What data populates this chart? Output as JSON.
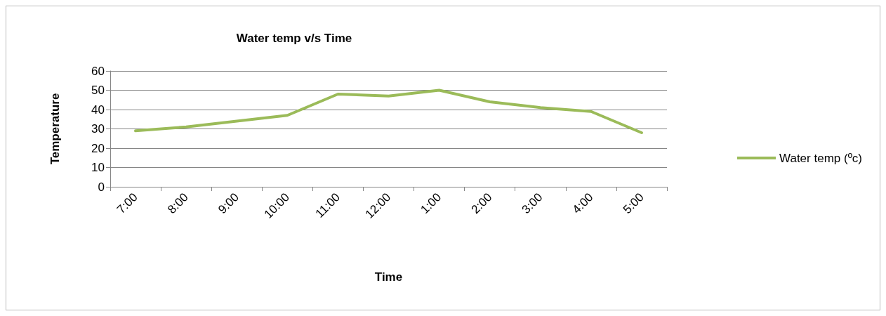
{
  "chart_data": {
    "type": "line",
    "title": "Water temp v/s Time",
    "xlabel": "Time",
    "ylabel": "Temperature",
    "categories": [
      "7:00",
      "8:00",
      "9:00",
      "10:00",
      "11:00",
      "12:00",
      "1:00",
      "2:00",
      "3:00",
      "4:00",
      "5:00"
    ],
    "series": [
      {
        "name": "Water temp (ºc)",
        "color": "#9bbb59",
        "values": [
          29,
          31,
          34,
          37,
          48,
          47,
          50,
          44,
          41,
          39,
          28
        ]
      }
    ],
    "ylim": [
      0,
      60
    ],
    "yticks": [
      0,
      10,
      20,
      30,
      40,
      50,
      60
    ],
    "grid": "y",
    "legend": "right",
    "marker": "none",
    "line_style": "solid"
  }
}
